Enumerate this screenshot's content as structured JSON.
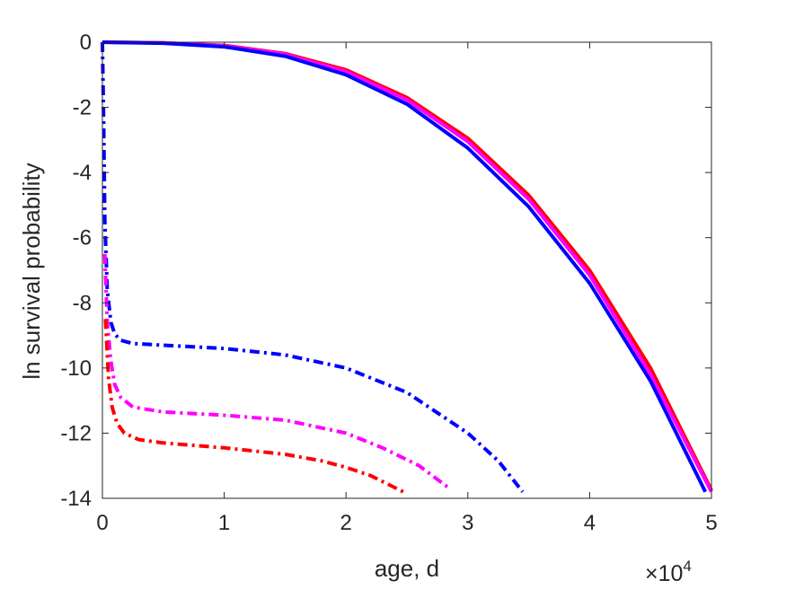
{
  "chart_data": {
    "type": "line",
    "title": "",
    "xlabel": "age, d",
    "ylabel": "ln survival probability",
    "x_exponent_label": "×10",
    "x_exponent_power": "4",
    "x_scale": 10000,
    "xlim": [
      0,
      50000
    ],
    "ylim": [
      -14,
      0
    ],
    "x_ticks": [
      0,
      10000,
      20000,
      30000,
      40000,
      50000
    ],
    "x_tick_labels": [
      "0",
      "1",
      "2",
      "3",
      "4",
      "5"
    ],
    "y_ticks": [
      0,
      -2,
      -4,
      -6,
      -8,
      -10,
      -12,
      -14
    ],
    "y_tick_labels": [
      "0",
      "-2",
      "-4",
      "-6",
      "-8",
      "-10",
      "-12",
      "-14"
    ],
    "grid": false,
    "legend": "none",
    "series": [
      {
        "color": "#ff0000",
        "style": "solid",
        "x": [
          0,
          5000,
          10000,
          15000,
          20000,
          25000,
          30000,
          35000,
          40000,
          45000,
          50000
        ],
        "y": [
          0,
          -0.02,
          -0.1,
          -0.35,
          -0.85,
          -1.7,
          -2.95,
          -4.7,
          -7.0,
          -10.0,
          -13.75
        ]
      },
      {
        "color": "#ff00ff",
        "style": "solid",
        "x": [
          0,
          5000,
          10000,
          15000,
          20000,
          25000,
          30000,
          35000,
          40000,
          45000,
          50000
        ],
        "y": [
          0,
          -0.02,
          -0.11,
          -0.37,
          -0.9,
          -1.77,
          -3.05,
          -4.82,
          -7.15,
          -10.2,
          -13.8
        ]
      },
      {
        "color": "#0000ff",
        "style": "solid",
        "x": [
          0,
          5000,
          10000,
          15000,
          20000,
          25000,
          30000,
          35000,
          40000,
          45000,
          49500
        ],
        "y": [
          0,
          -0.03,
          -0.14,
          -0.43,
          -1.0,
          -1.9,
          -3.25,
          -5.05,
          -7.4,
          -10.4,
          -13.8
        ]
      },
      {
        "color": "#0000ff",
        "style": "dashdot",
        "x": [
          0,
          100,
          200,
          400,
          700,
          1000,
          1500,
          2500,
          5000,
          10000,
          15000,
          20000,
          25000,
          30000,
          32500,
          34500
        ],
        "y": [
          0,
          -2.5,
          -5.5,
          -7.6,
          -8.6,
          -8.95,
          -9.15,
          -9.25,
          -9.3,
          -9.4,
          -9.6,
          -10.0,
          -10.75,
          -12.0,
          -12.85,
          -13.8
        ]
      },
      {
        "color": "#ff00ff",
        "style": "dashdot",
        "x": [
          200,
          400,
          700,
          1000,
          1500,
          2500,
          5000,
          10000,
          15000,
          20000,
          23000,
          26000,
          28500
        ],
        "y": [
          -6.5,
          -8.6,
          -9.8,
          -10.5,
          -10.9,
          -11.2,
          -11.35,
          -11.45,
          -11.6,
          -12.0,
          -12.45,
          -13.0,
          -13.7
        ]
      },
      {
        "color": "#ff0000",
        "style": "dashdot",
        "x": [
          250,
          500,
          800,
          1200,
          1800,
          3000,
          5000,
          10000,
          15000,
          18000,
          20000,
          22000,
          24700
        ],
        "y": [
          -8.5,
          -10.3,
          -11.2,
          -11.7,
          -12.0,
          -12.2,
          -12.3,
          -12.45,
          -12.65,
          -12.85,
          -13.05,
          -13.3,
          -13.8
        ]
      }
    ]
  }
}
